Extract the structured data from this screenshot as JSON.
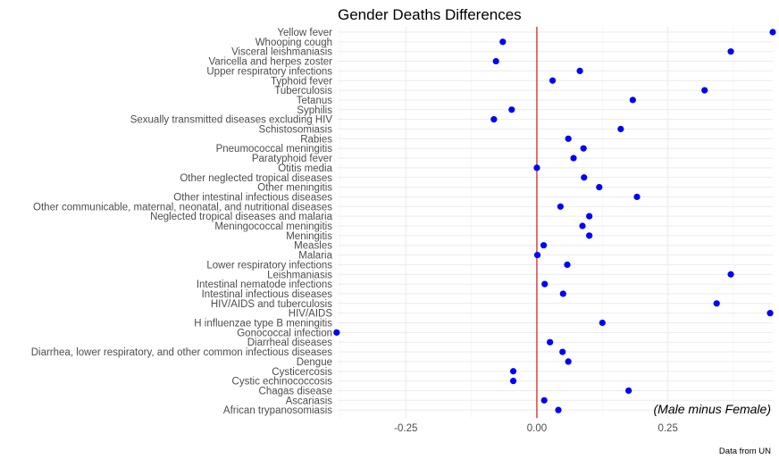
{
  "chart_data": {
    "type": "scatter",
    "title": "Gender Deaths Differences",
    "annotation": "(Male minus Female)",
    "caption": "Data from UN",
    "xlim": [
      -0.38,
      0.45
    ],
    "x_ticks": [
      -0.25,
      0.0,
      0.25
    ],
    "x_tick_labels": [
      "-0.25",
      "0.00",
      "0.25"
    ],
    "reference_line_x": 0,
    "grid": true,
    "point_color": "#0000ff",
    "reference_line_color": "#cc0000",
    "categories": [
      "Yellow fever",
      "Whooping cough",
      "Visceral leishmaniasis",
      "Varicella and herpes zoster",
      "Upper respiratory infections",
      "Typhoid fever",
      "Tuberculosis",
      "Tetanus",
      "Syphilis",
      "Sexually transmitted diseases excluding HIV",
      "Schistosomiasis",
      "Rabies",
      "Pneumococcal meningitis",
      "Paratyphoid fever",
      "Otitis media",
      "Other neglected tropical diseases",
      "Other meningitis",
      "Other intestinal infectious diseases",
      "Other communicable, maternal, neonatal, and nutritional diseases",
      "Neglected tropical diseases and malaria",
      "Meningococcal meningitis",
      "Meningitis",
      "Measles",
      "Malaria",
      "Lower respiratory infections",
      "Leishmaniasis",
      "Intestinal nematode infections",
      "Intestinal infectious diseases",
      "HIV/AIDS and tuberculosis",
      "HIV/AIDS",
      "H influenzae type B meningitis",
      "Gonococcal infection",
      "Diarrheal diseases",
      "Diarrhea, lower respiratory, and other common infectious diseases",
      "Dengue",
      "Cysticercosis",
      "Cystic echinococcosis",
      "Chagas disease",
      "Ascariasis",
      "African trypanosomiasis"
    ],
    "values": [
      0.45,
      -0.065,
      0.37,
      -0.078,
      0.082,
      0.03,
      0.32,
      0.183,
      -0.048,
      -0.082,
      0.16,
      0.06,
      0.089,
      0.07,
      0.0,
      0.09,
      0.119,
      0.191,
      0.045,
      0.1,
      0.087,
      0.1,
      0.013,
      0.001,
      0.058,
      0.37,
      0.015,
      0.05,
      0.343,
      0.445,
      0.125,
      -0.382,
      0.025,
      0.049,
      0.06,
      -0.045,
      -0.045,
      0.175,
      0.014,
      0.041
    ]
  }
}
